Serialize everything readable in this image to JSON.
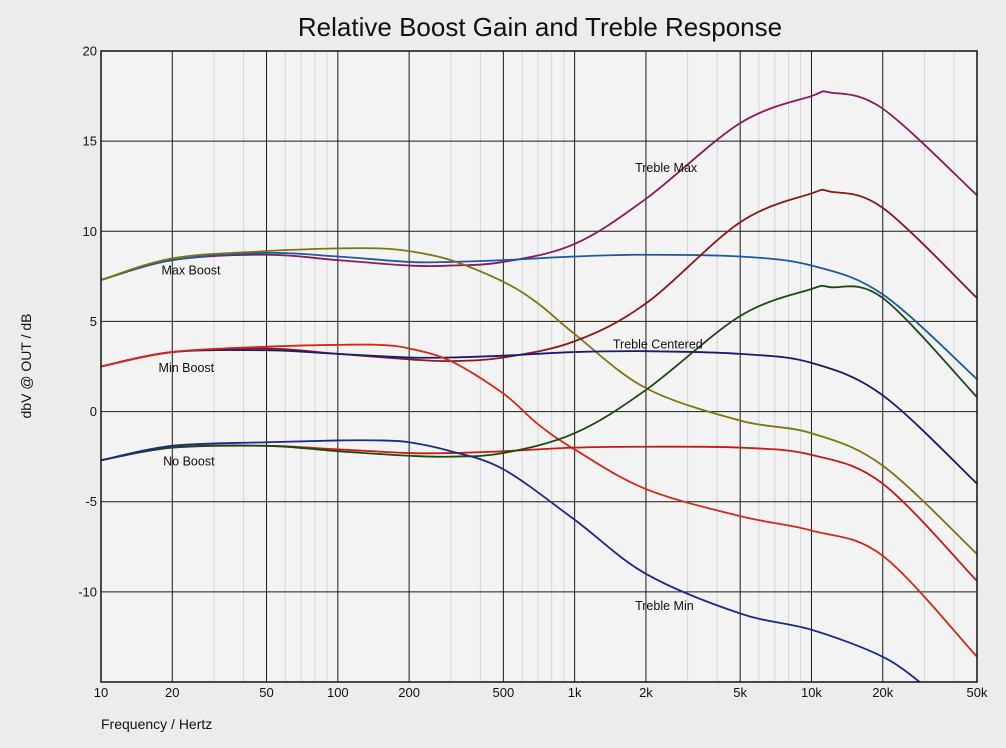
{
  "chart_data": {
    "type": "line",
    "title": "Relative Boost Gain and Treble Response",
    "xlabel": "Frequency / Hertz",
    "ylabel": "dbV @ OUT / dB",
    "x_scale": "log",
    "xlim": [
      10,
      50000
    ],
    "ylim": [
      -15,
      20
    ],
    "grid": true,
    "x_ticks": [
      10,
      20,
      50,
      100,
      200,
      500,
      1000,
      2000,
      5000,
      10000,
      20000,
      50000
    ],
    "x_tick_labels": [
      "10",
      "20",
      "50",
      "100",
      "200",
      "500",
      "1k",
      "2k",
      "5k",
      "10k",
      "20k",
      "50k"
    ],
    "y_ticks": [
      20,
      15,
      10,
      5,
      0,
      -5,
      -10
    ],
    "y_tick_labels": [
      "20",
      "15",
      "10",
      "5",
      "0",
      "-5",
      "-10"
    ],
    "annotations": [
      {
        "text": "Max Boost",
        "x": 18,
        "y": 7.6
      },
      {
        "text": "Min Boost",
        "x": 17.5,
        "y": 2.2
      },
      {
        "text": "No Boost",
        "x": 18.3,
        "y": -3.0
      },
      {
        "text": "Treble Max",
        "x": 1800,
        "y": 13.3
      },
      {
        "text": "Treble Centered",
        "x": 1450,
        "y": 3.5
      },
      {
        "text": "Treble Min",
        "x": 1800,
        "y": -11.0
      }
    ],
    "series": [
      {
        "color": "#8b1a5e",
        "x": [
          10,
          20,
          50,
          100,
          200,
          300,
          500,
          1000,
          2000,
          5000,
          10000,
          12000,
          20000,
          50000
        ],
        "y": [
          7.3,
          8.4,
          8.7,
          8.4,
          8.1,
          8.1,
          8.3,
          9.3,
          11.8,
          16.0,
          17.5,
          17.7,
          16.8,
          12.0
        ]
      },
      {
        "color": "#1a5aa0",
        "x": [
          10,
          20,
          50,
          100,
          200,
          300,
          500,
          1000,
          2000,
          5000,
          10000,
          20000,
          50000
        ],
        "y": [
          7.3,
          8.4,
          8.8,
          8.6,
          8.3,
          8.3,
          8.4,
          8.6,
          8.7,
          8.6,
          8.1,
          6.5,
          1.8
        ]
      },
      {
        "color": "#7f7412",
        "x": [
          10,
          20,
          50,
          100,
          150,
          200,
          300,
          500,
          700,
          1000,
          2000,
          5000,
          10000,
          20000,
          50000
        ],
        "y": [
          7.3,
          8.5,
          8.9,
          9.05,
          9.05,
          8.9,
          8.4,
          7.2,
          6.0,
          4.3,
          1.3,
          -0.5,
          -1.2,
          -3.0,
          -7.9
        ]
      },
      {
        "color": "#8b1a1a",
        "x": [
          10,
          20,
          50,
          100,
          200,
          300,
          500,
          1000,
          2000,
          5000,
          10000,
          12000,
          20000,
          50000
        ],
        "y": [
          2.5,
          3.3,
          3.5,
          3.2,
          2.9,
          2.8,
          3.0,
          3.9,
          6.0,
          10.5,
          12.1,
          12.2,
          11.3,
          6.3
        ]
      },
      {
        "color": "#1a1a6e",
        "x": [
          10,
          20,
          50,
          100,
          200,
          300,
          500,
          1000,
          2000,
          5000,
          10000,
          20000,
          50000
        ],
        "y": [
          2.5,
          3.3,
          3.4,
          3.2,
          3.0,
          3.0,
          3.1,
          3.3,
          3.35,
          3.2,
          2.7,
          0.9,
          -4.0
        ]
      },
      {
        "color": "#d42a1a",
        "x": [
          10,
          20,
          50,
          100,
          150,
          200,
          300,
          500,
          700,
          1000,
          2000,
          5000,
          10000,
          20000,
          50000
        ],
        "y": [
          2.5,
          3.3,
          3.6,
          3.7,
          3.7,
          3.5,
          2.8,
          1.0,
          -0.7,
          -2.1,
          -4.3,
          -5.8,
          -6.6,
          -8.0,
          -13.6
        ]
      },
      {
        "color": "#c81a14",
        "x": [
          10,
          20,
          50,
          100,
          200,
          300,
          500,
          1000,
          2000,
          5000,
          10000,
          20000,
          50000
        ],
        "y": [
          -2.7,
          -2.0,
          -1.9,
          -2.1,
          -2.3,
          -2.3,
          -2.2,
          -2.0,
          -1.95,
          -2.0,
          -2.4,
          -4.0,
          -9.4
        ]
      },
      {
        "color": "#1a4a10",
        "x": [
          10,
          20,
          50,
          100,
          200,
          300,
          500,
          1000,
          2000,
          5000,
          10000,
          12000,
          20000,
          50000
        ],
        "y": [
          -2.7,
          -2.0,
          -1.9,
          -2.2,
          -2.45,
          -2.5,
          -2.3,
          -1.2,
          1.2,
          5.3,
          6.8,
          6.9,
          6.3,
          0.8
        ]
      },
      {
        "color": "#1a2a8a",
        "x": [
          10,
          20,
          50,
          100,
          150,
          200,
          300,
          500,
          1000,
          2000,
          5000,
          10000,
          20000,
          30000
        ],
        "y": [
          -2.7,
          -1.9,
          -1.7,
          -1.6,
          -1.6,
          -1.7,
          -2.2,
          -3.2,
          -6.0,
          -9.0,
          -11.2,
          -12.1,
          -13.6,
          -15.2
        ]
      }
    ]
  }
}
